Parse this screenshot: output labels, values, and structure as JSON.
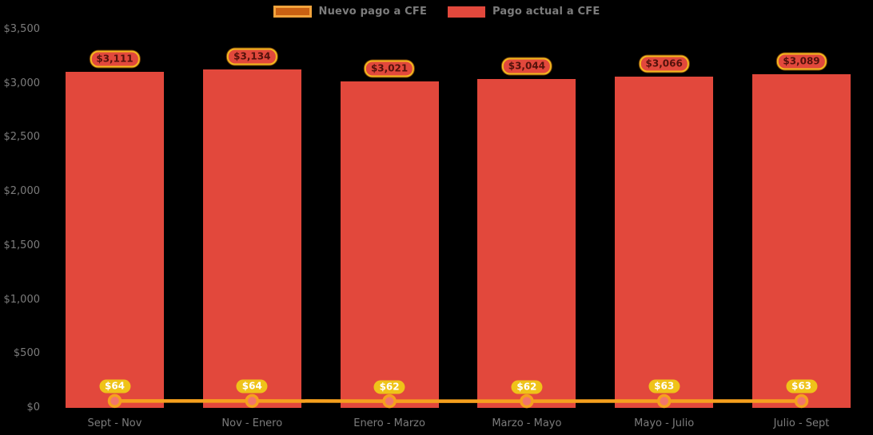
{
  "background": "#000000",
  "text_color": "#7c7c7c",
  "legend": {
    "items": [
      {
        "label": "Nuevo pago a CFE",
        "swatch_fill": "#c96012",
        "swatch_border": "#f2a33c"
      },
      {
        "label": "Pago actual a CFE",
        "swatch_fill": "#e2483c",
        "swatch_border": ""
      }
    ]
  },
  "chart_data": {
    "type": "bar",
    "categories": [
      "Sept - Nov",
      "Nov - Enero",
      "Enero - Marzo",
      "Marzo - Mayo",
      "Mayo - Julio",
      "Julio - Sept"
    ],
    "series": [
      {
        "name": "Pago actual a CFE",
        "type": "bar",
        "color": "#e2483c",
        "values": [
          3111,
          3134,
          3021,
          3044,
          3066,
          3089
        ],
        "data_labels": [
          "$3,111",
          "$3,134",
          "$3,021",
          "$3,044",
          "$3,066",
          "$3,089"
        ]
      },
      {
        "name": "Nuevo pago a CFE",
        "type": "line",
        "color": "#f6a01e",
        "marker_fill": "#f2766b",
        "values": [
          64,
          64,
          62,
          62,
          63,
          63
        ],
        "data_labels": [
          "$64",
          "$64",
          "$62",
          "$62",
          "$63",
          "$63"
        ]
      }
    ],
    "ylim": [
      0,
      3500
    ],
    "y_ticks": [
      {
        "value": 0,
        "label": "$0"
      },
      {
        "value": 500,
        "label": "$500"
      },
      {
        "value": 1000,
        "label": "$1,000"
      },
      {
        "value": 1500,
        "label": "$1,500"
      },
      {
        "value": 2000,
        "label": "$2,000"
      },
      {
        "value": 2500,
        "label": "$2,500"
      },
      {
        "value": 3000,
        "label": "$3,000"
      },
      {
        "value": 3500,
        "label": "$3,500"
      }
    ],
    "grid": false,
    "legend_position": "top-center",
    "styles": {
      "bar_label": {
        "bg": "#e2483c",
        "border": "#f3b81e",
        "text": "#54120b"
      },
      "line_label": {
        "bg": "#efc319",
        "text": "#ffffff"
      }
    }
  }
}
